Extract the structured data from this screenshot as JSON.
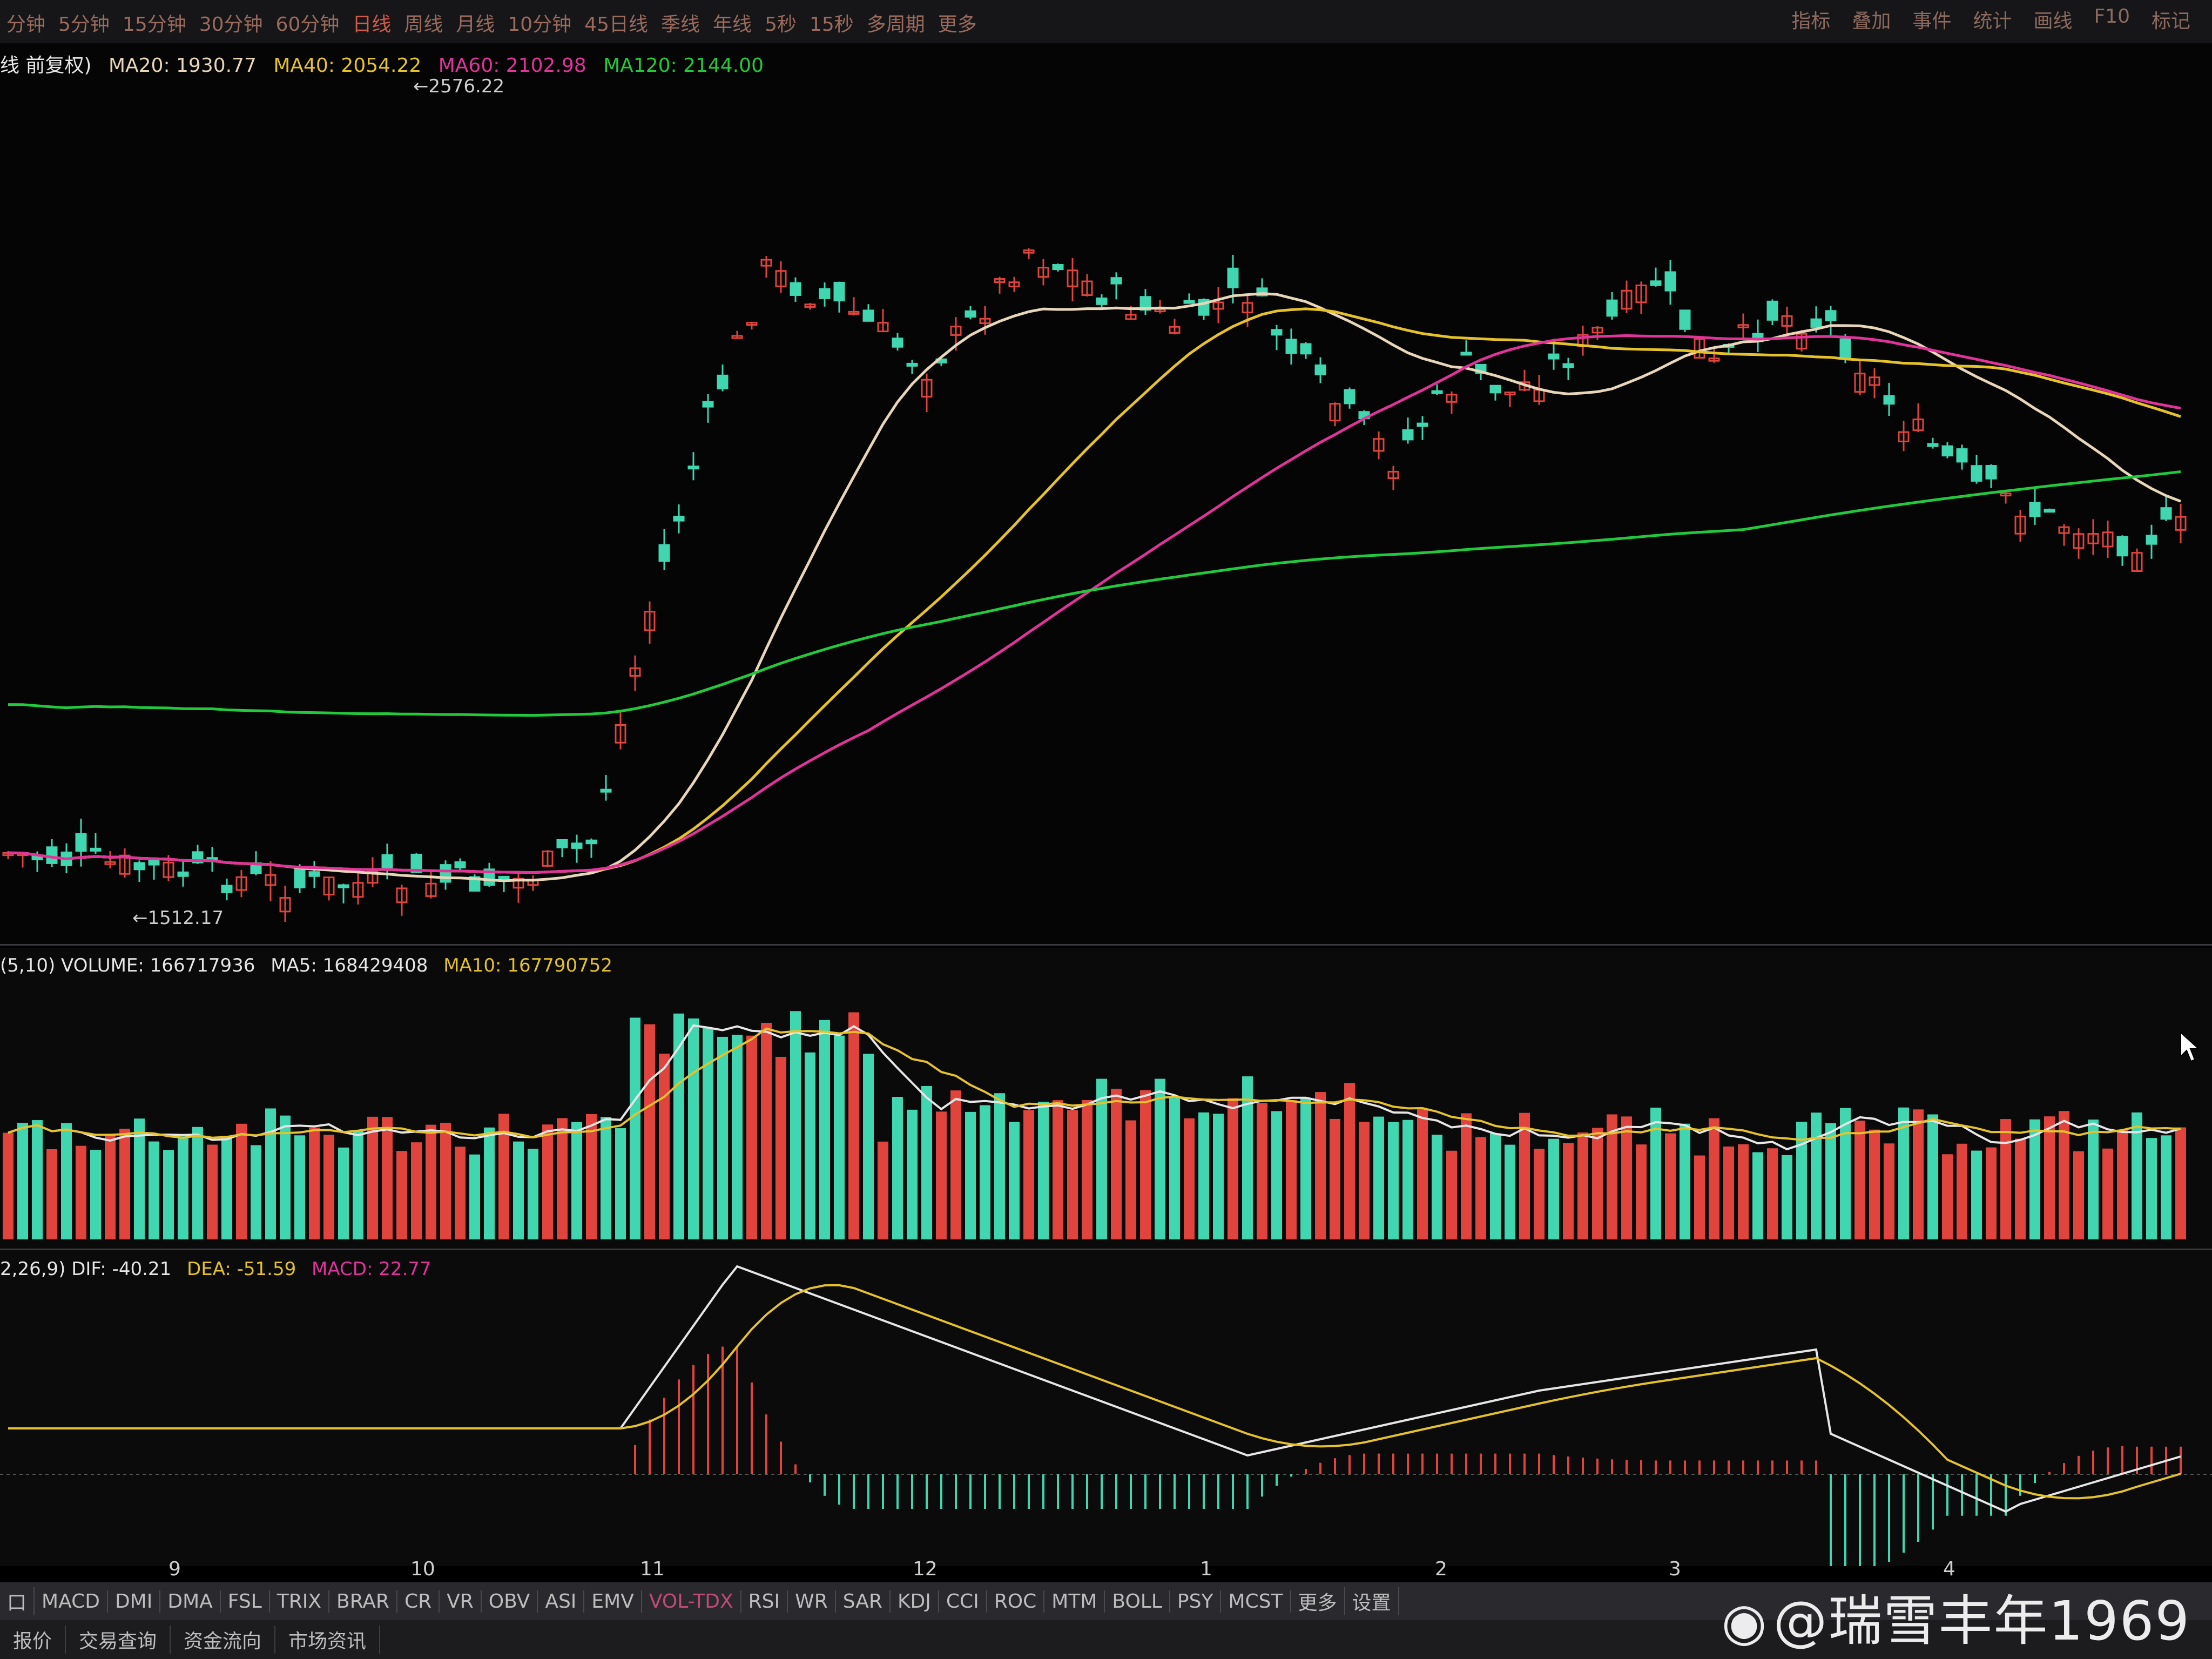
{
  "top_tabs": [
    "分钟",
    "5分钟",
    "15分钟",
    "30分钟",
    "60分钟",
    "日线",
    "周线",
    "月线",
    "10分钟",
    "45日线",
    "季线",
    "年线",
    "5秒",
    "15秒",
    "多周期",
    "更多"
  ],
  "active_top_tab": "日线",
  "tool_tabs": [
    "指标",
    "叠加",
    "事件",
    "统计",
    "画线",
    "F10",
    "标记"
  ],
  "main_legend": {
    "prefix": "线 前复权)",
    "ma20": "MA20: 1930.77",
    "ma40": "MA40: 2054.22",
    "ma60": "MA60: 2102.98",
    "ma120": "MA120: 2144.00"
  },
  "price_labels": {
    "high": "2576.22",
    "low": "1512.17"
  },
  "volume_legend": {
    "prefix": "(5,10) VOLUME: 166717936",
    "ma5": "MA5: 168429408",
    "ma10": "MA10: 167790752"
  },
  "macd_legend": {
    "prefix": "2,26,9) DIF: -40.21",
    "dea": "DEA: -51.59",
    "macd": "MACD: 22.77"
  },
  "month_axis": [
    "9",
    "10",
    "11",
    "12",
    "1",
    "2",
    "3",
    "4"
  ],
  "indicator_tabs": [
    "口",
    "MACD",
    "DMI",
    "DMA",
    "FSL",
    "TRIX",
    "BRAR",
    "CR",
    "VR",
    "OBV",
    "ASI",
    "EMV",
    "VOL-TDX",
    "RSI",
    "WR",
    "SAR",
    "KDJ",
    "CCI",
    "ROC",
    "MTM",
    "BOLL",
    "PSY",
    "MCST",
    "更多",
    "设置"
  ],
  "active_indicator": "VOL-TDX",
  "bottom_tabs": [
    "报价",
    "交易查询",
    "资金流向",
    "市场资讯"
  ],
  "watermark": "@瑞雪丰年1969",
  "colors": {
    "up": "#e0443c",
    "down": "#3fd6b0",
    "ma20": "#e8d6b8",
    "ma40": "#e6c22a",
    "ma60": "#e0349a",
    "ma120": "#22c93a"
  }
}
